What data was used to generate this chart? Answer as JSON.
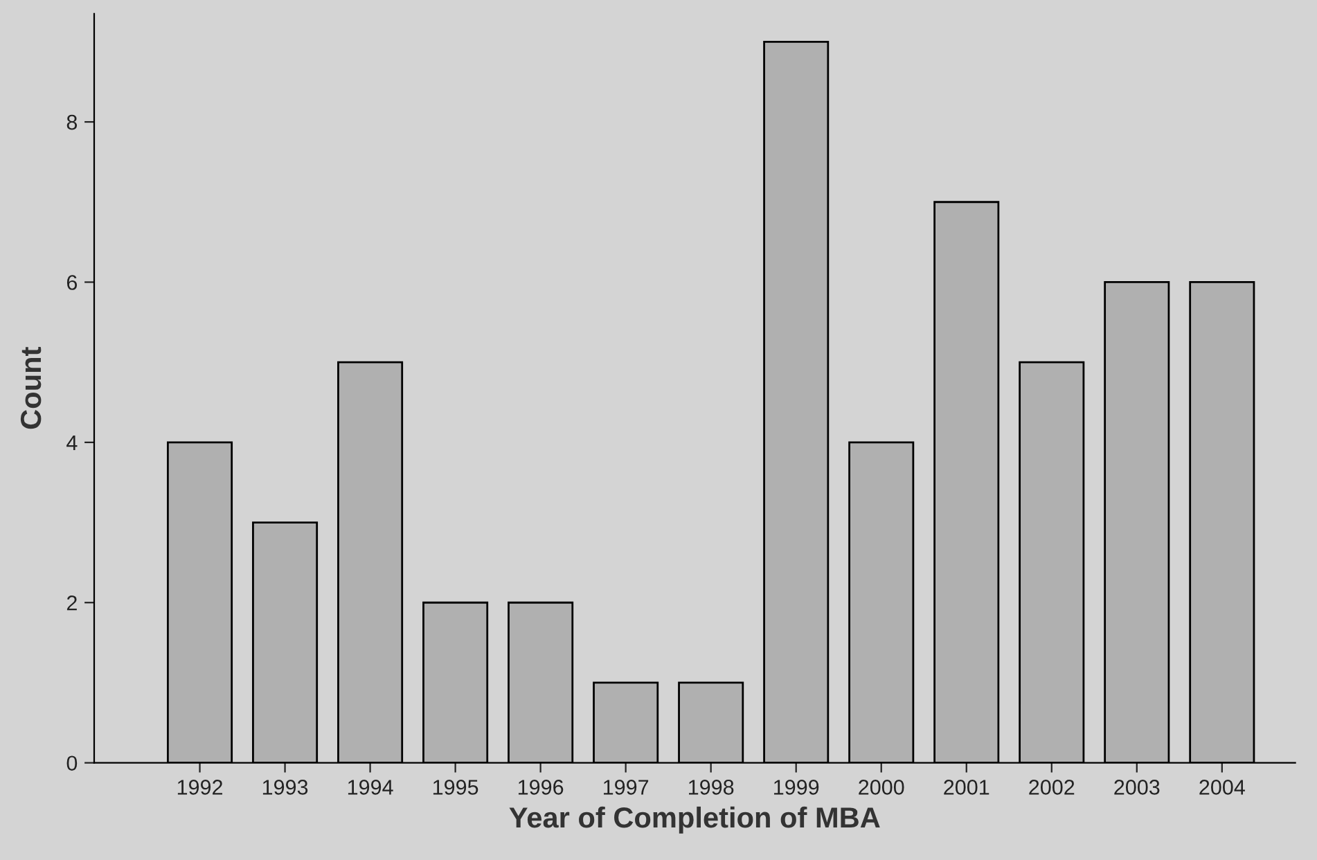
{
  "chart_data": {
    "type": "bar",
    "xlabel": "Year of Completion of MBA",
    "ylabel": "Count",
    "categories": [
      "1992",
      "1993",
      "1994",
      "1995",
      "1996",
      "1997",
      "1998",
      "1999",
      "2000",
      "2001",
      "2002",
      "2003",
      "2004"
    ],
    "values": [
      4,
      3,
      5,
      2,
      2,
      1,
      1,
      9,
      4,
      7,
      5,
      6,
      6
    ],
    "color": "#b0b0b0",
    "ylim": [
      0,
      9.35
    ],
    "yticks": [
      0,
      2,
      4,
      6,
      8
    ],
    "grid": false,
    "legend": false
  }
}
